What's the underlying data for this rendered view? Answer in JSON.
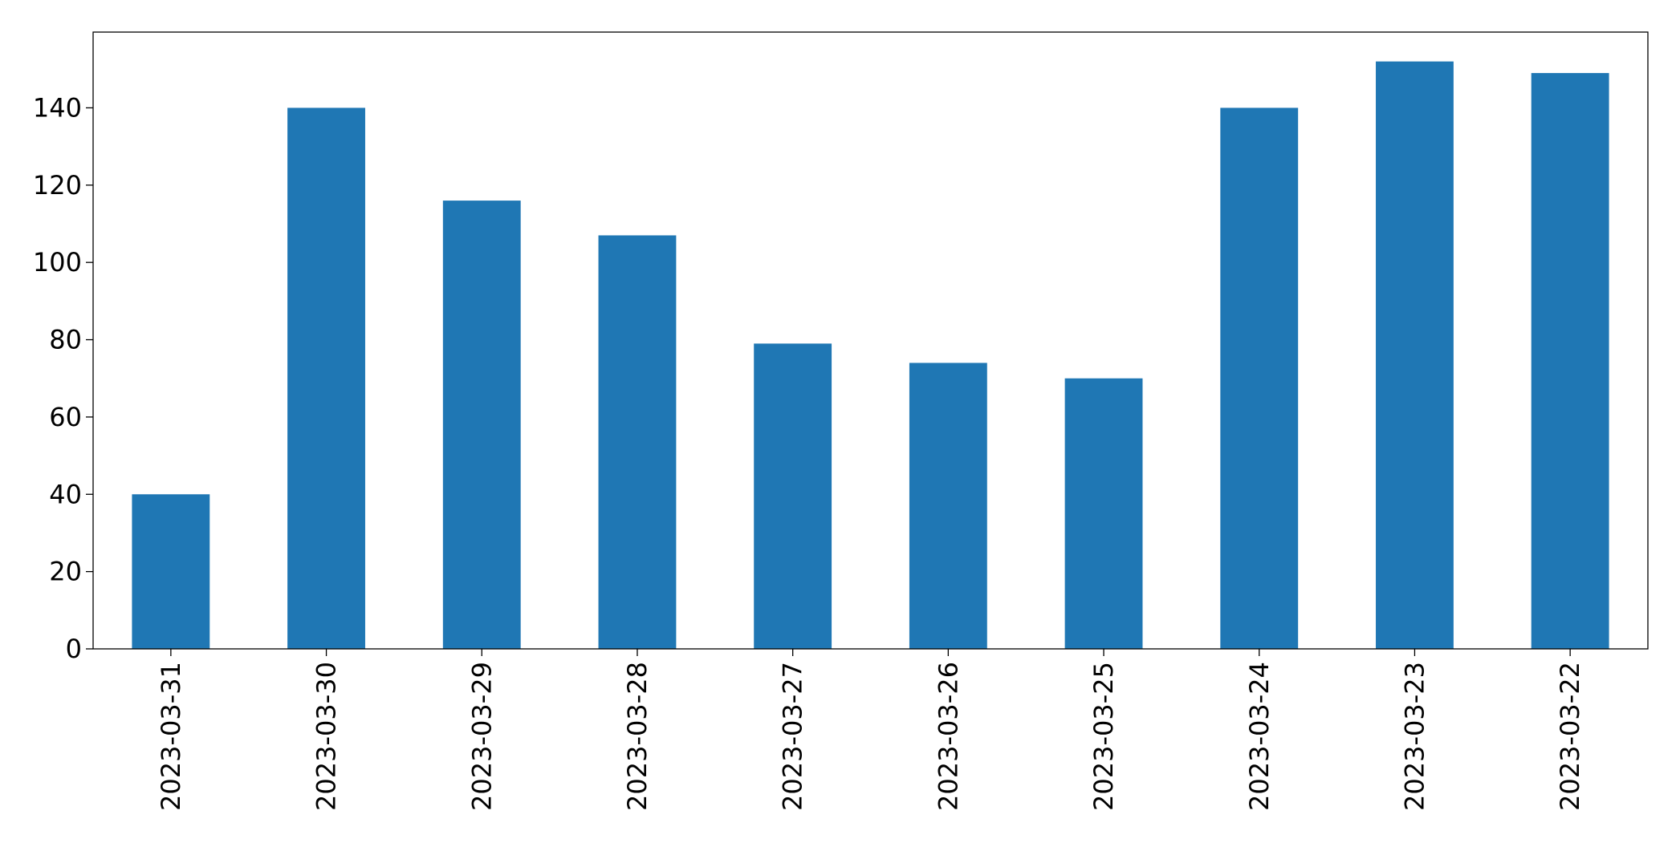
{
  "chart_data": {
    "type": "bar",
    "categories": [
      "2023-03-31",
      "2023-03-30",
      "2023-03-29",
      "2023-03-28",
      "2023-03-27",
      "2023-03-26",
      "2023-03-25",
      "2023-03-24",
      "2023-03-23",
      "2023-03-22"
    ],
    "values": [
      40,
      140,
      116,
      107,
      79,
      74,
      70,
      140,
      152,
      149
    ],
    "color": "#1f77b4",
    "ylim": [
      0,
      159.6
    ],
    "yticks": [
      0,
      20,
      40,
      60,
      80,
      100,
      120,
      140
    ],
    "grid": false
  }
}
